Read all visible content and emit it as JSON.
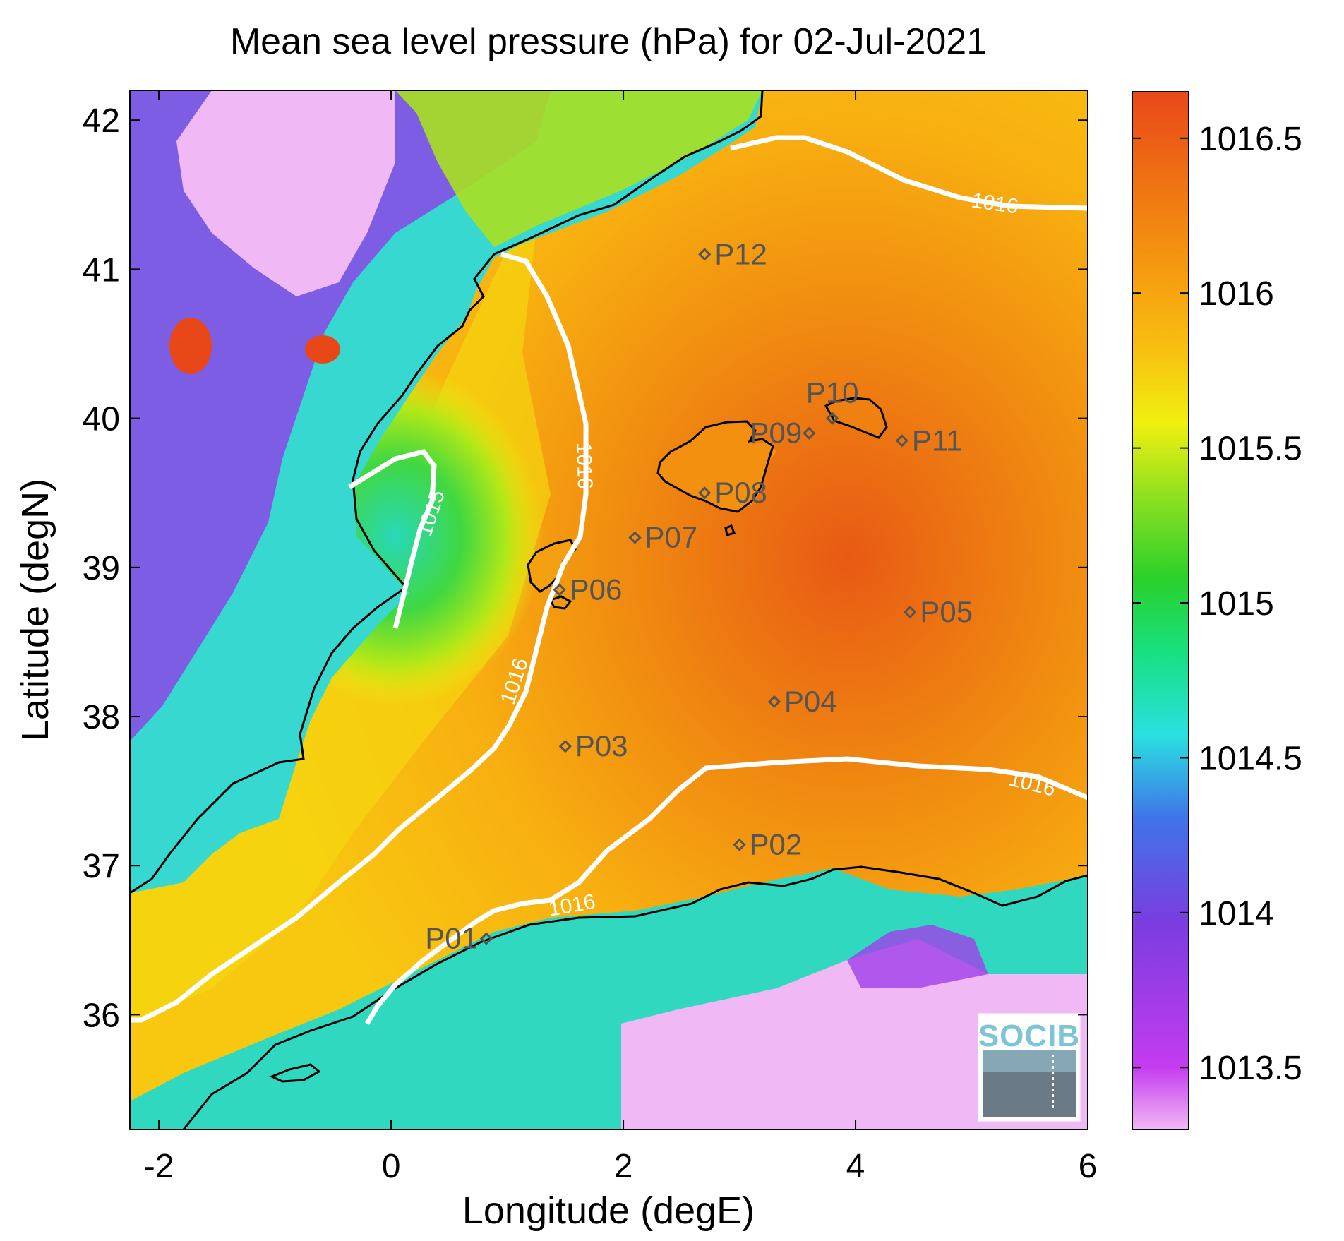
{
  "title": "Mean sea level pressure (hPa) for 02-Jul-2021",
  "xlabel": "Longitude (degE)",
  "ylabel": "Latitude (degN)",
  "x_ticks": [
    "-2",
    "0",
    "2",
    "4",
    "6"
  ],
  "y_ticks": [
    "36",
    "37",
    "38",
    "39",
    "40",
    "41",
    "42"
  ],
  "colorbar": {
    "min": 1013.3,
    "max": 1016.65,
    "tick_values": [
      1013.5,
      1014,
      1014.5,
      1015,
      1015.5,
      1016,
      1016.5
    ],
    "tick_labels": [
      "1013.5",
      "1014",
      "1014.5",
      "1015",
      "1015.5",
      "1016",
      "1016.5"
    ],
    "colors": [
      "#f2b8f4",
      "#c43cf0",
      "#7a3de0",
      "#3f74e8",
      "#2ae0e0",
      "#18e080",
      "#2ad02a",
      "#8ee020",
      "#f0f010",
      "#f8c010",
      "#f49010",
      "#e84818"
    ]
  },
  "contour_labels": [
    "1016",
    "1016",
    "1015",
    "1016",
    "1016",
    "1016"
  ],
  "stations": [
    {
      "label": "P01",
      "lon": 0.82,
      "lat": 36.51
    },
    {
      "label": "P02",
      "lon": 3.0,
      "lat": 37.14
    },
    {
      "label": "P03",
      "lon": 1.5,
      "lat": 37.8
    },
    {
      "label": "P04",
      "lon": 3.3,
      "lat": 38.1
    },
    {
      "label": "P05",
      "lon": 4.47,
      "lat": 38.7
    },
    {
      "label": "P06",
      "lon": 1.45,
      "lat": 38.85
    },
    {
      "label": "P07",
      "lon": 2.1,
      "lat": 39.2
    },
    {
      "label": "P08",
      "lon": 2.7,
      "lat": 39.5
    },
    {
      "label": "P09",
      "lon": 3.6,
      "lat": 39.9
    },
    {
      "label": "P10",
      "lon": 3.8,
      "lat": 40.0
    },
    {
      "label": "P11",
      "lon": 4.4,
      "lat": 39.85
    },
    {
      "label": "P12",
      "lon": 2.7,
      "lat": 41.1
    }
  ],
  "logo": "SOCIB"
}
